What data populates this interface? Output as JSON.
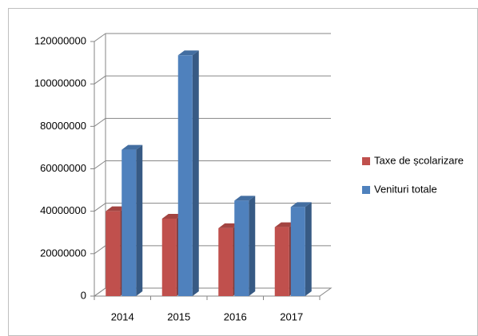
{
  "chart_data": {
    "type": "bar3d",
    "categories": [
      "2014",
      "2015",
      "2016",
      "2017"
    ],
    "series": [
      {
        "name": "Taxe de școlarizare",
        "color": "#c0504d",
        "values": [
          40000000,
          36500000,
          32000000,
          32500000
        ]
      },
      {
        "name": "Venituri totale",
        "color": "#4f81bd",
        "values": [
          69000000,
          113500000,
          45000000,
          42000000
        ]
      }
    ],
    "ylim": [
      0,
      120000000
    ],
    "yticks": [
      0,
      20000000,
      40000000,
      60000000,
      80000000,
      100000000,
      120000000
    ],
    "grid": true,
    "legend": "right"
  }
}
